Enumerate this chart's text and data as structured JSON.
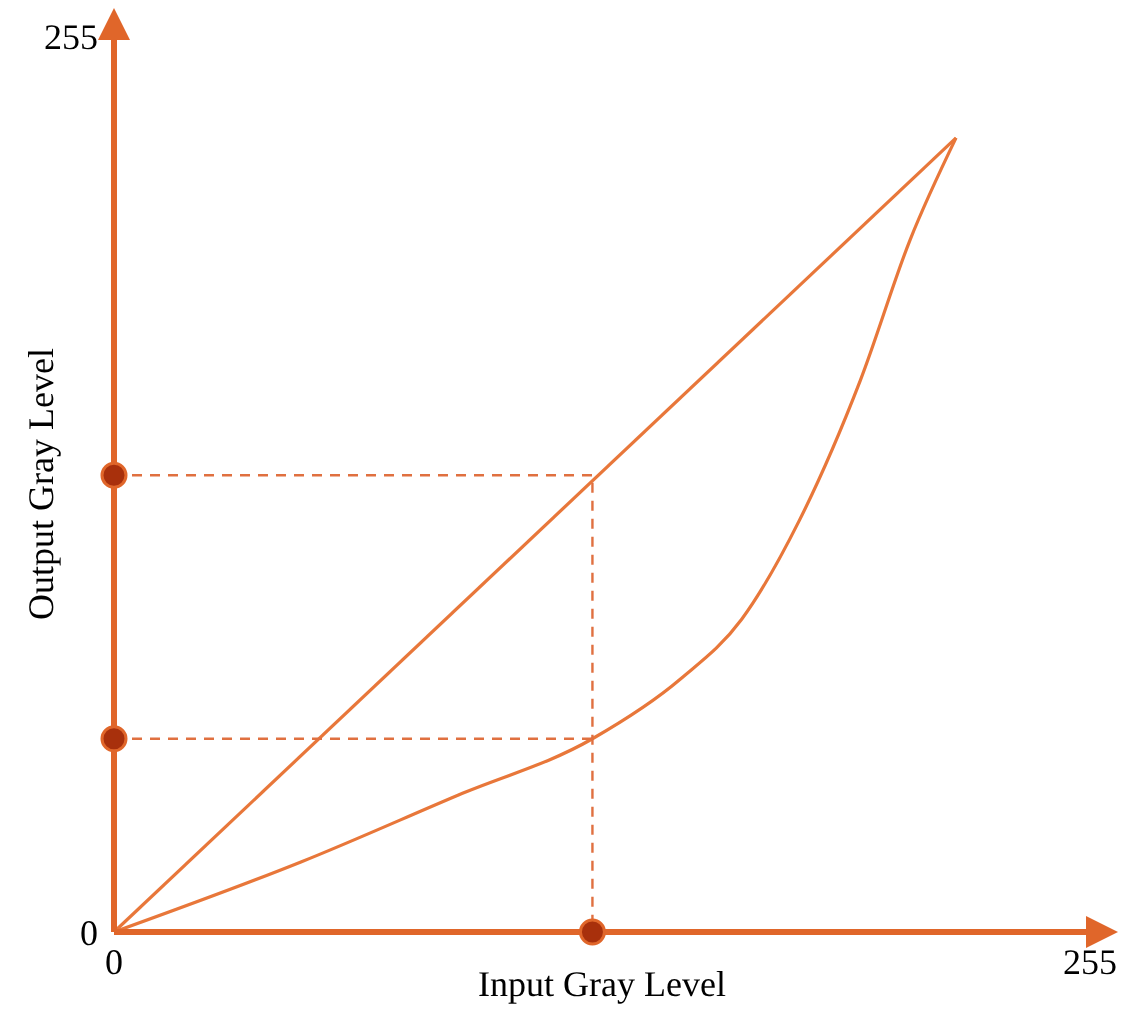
{
  "chart_data": {
    "type": "line",
    "xlabel": "Input Gray Level",
    "ylabel": "Output Gray Level",
    "xlim": [
      0,
      255
    ],
    "ylim": [
      0,
      255
    ],
    "xticks": [
      0,
      255
    ],
    "yticks": [
      0,
      255
    ],
    "marker": "none",
    "series": [
      {
        "color": "#e8773a",
        "x": [
          0,
          220
        ],
        "values": [
          0,
          226
        ]
      },
      {
        "color": "#e8773a",
        "x": [
          0,
          49,
          90,
          125,
          148,
          164,
          179,
          195,
          208,
          220
        ],
        "values": [
          0,
          20,
          39,
          55,
          72,
          89,
          117,
          157,
          197,
          226
        ]
      },
      {
        "color": "#e07040",
        "line_style": "dashed",
        "x": [
          0,
          125,
          125
        ],
        "values": [
          130,
          130,
          0
        ]
      },
      {
        "color": "#e07040",
        "line_style": "dashed",
        "x": [
          0,
          125
        ],
        "values": [
          55,
          55
        ]
      },
      {
        "type": "scatter",
        "color": "#a8300c",
        "marker": "circle",
        "x": [
          0,
          0,
          125
        ],
        "values": [
          130,
          55,
          0
        ]
      }
    ]
  }
}
